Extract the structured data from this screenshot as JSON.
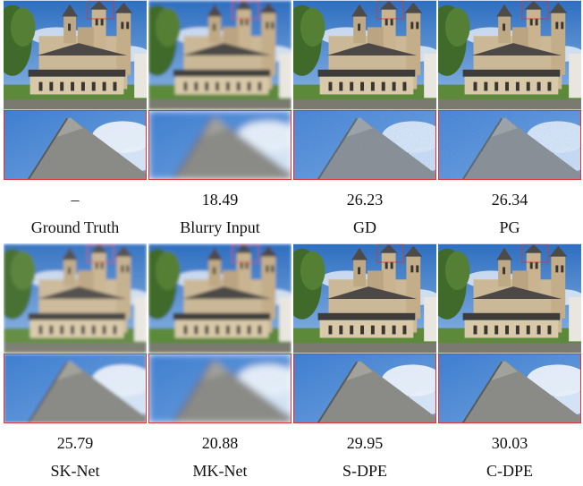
{
  "rows": [
    {
      "panels": [
        {
          "score": "–",
          "label": "Ground Truth"
        },
        {
          "score": 18.49,
          "label": "Blurry Input"
        },
        {
          "score": 26.23,
          "label": "GD"
        },
        {
          "score": 26.34,
          "label": "PG"
        }
      ]
    },
    {
      "panels": [
        {
          "score": 25.79,
          "label": "SK-Net"
        },
        {
          "score": 20.88,
          "label": "MK-Net"
        },
        {
          "score": 29.95,
          "label": "S-DPE"
        },
        {
          "score": 30.03,
          "label": "C-DPE"
        }
      ]
    }
  ]
}
